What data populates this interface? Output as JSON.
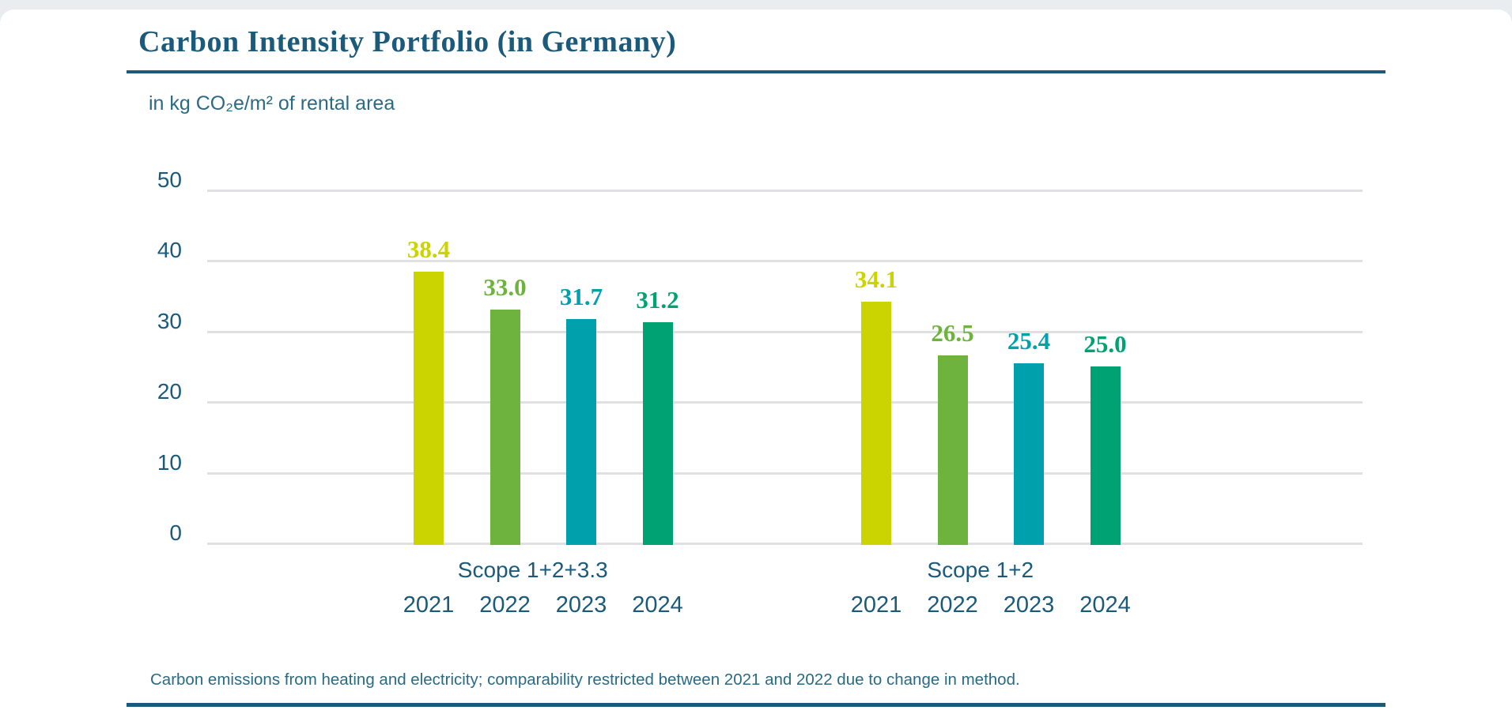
{
  "header": {
    "title": "Carbon Intensity Portfolio (in Germany)"
  },
  "subtitle": "in kg CO₂e/m² of rental area",
  "footnote": "Carbon emissions from heating and electricity; comparability restricted between 2021 and 2022 due to change in method.",
  "colors": {
    "accent_text": "#1b5a7a",
    "secondary_text": "#2a6a85",
    "grid": "#e0e0e3",
    "card_background": "#ffffff",
    "page_background": "#e9edf0"
  },
  "chart_data": {
    "type": "bar",
    "title": "Carbon Intensity Portfolio (in Germany)",
    "ylabel": "in kg CO₂e/m² of rental area",
    "xlabel": "",
    "ylim": [
      0,
      50
    ],
    "yticks": [
      0,
      10,
      20,
      30,
      40,
      50
    ],
    "grid": true,
    "legend": "none",
    "categories": [
      "2021",
      "2022",
      "2023",
      "2024"
    ],
    "bar_colors": [
      "#cbd300",
      "#6db33e",
      "#00a0ac",
      "#00a173"
    ],
    "groups": [
      {
        "label": "Scope 1+2+3.3",
        "values": [
          38.4,
          33.0,
          31.7,
          31.2
        ]
      },
      {
        "label": "Scope 1+2",
        "values": [
          34.1,
          26.5,
          25.4,
          25.0
        ]
      }
    ]
  }
}
